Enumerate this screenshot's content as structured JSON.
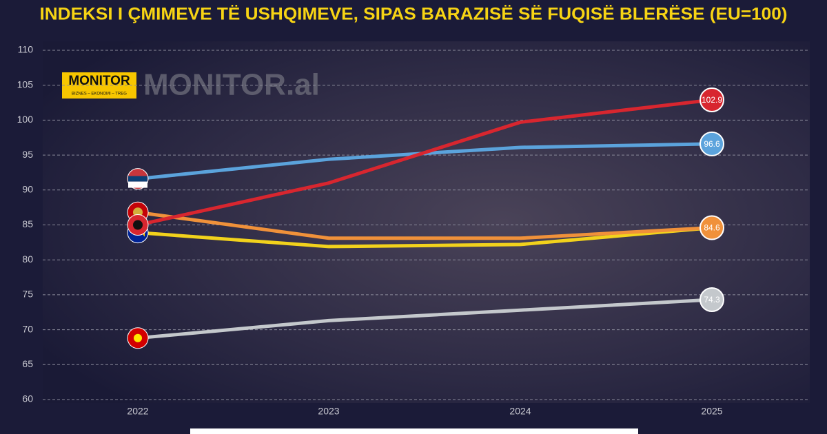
{
  "chart_data": {
    "type": "line",
    "title": "INDEKSI I ÇMIMEVE TË USHQIMEVE, SIPAS BARAZISË SË FUQISË BLERËSE (EU=100)",
    "logo": "MONITOR",
    "logo_tagline": "BIZNES – EKONOMI – TREG",
    "watermark": "MONITOR.al",
    "categories": [
      "2022",
      "2023",
      "2024",
      "2025"
    ],
    "series": [
      {
        "color": "#f2d21c",
        "flag": "ba",
        "end_label": false,
        "values": [
          83.9,
          81.9,
          82.2,
          84.6
        ]
      },
      {
        "color": "#f0913a",
        "flag": "me",
        "end_label": true,
        "values": [
          86.8,
          83.1,
          83.1,
          84.6
        ]
      },
      {
        "color": "#c4c8cc",
        "flag": "mk",
        "end_label": true,
        "values": [
          68.8,
          71.3,
          72.8,
          74.3
        ]
      },
      {
        "color": "#5ba3dc",
        "flag": "rs",
        "end_label": true,
        "values": [
          91.6,
          94.4,
          96.1,
          96.6
        ]
      },
      {
        "color": "#d8262f",
        "flag": "al",
        "end_label": true,
        "values": [
          85.0,
          91.0,
          99.7,
          102.9
        ]
      }
    ],
    "ylim": [
      60,
      110
    ],
    "yticks": [
      60,
      65,
      70,
      75,
      80,
      85,
      90,
      95,
      100,
      105,
      110
    ],
    "grid": true
  }
}
